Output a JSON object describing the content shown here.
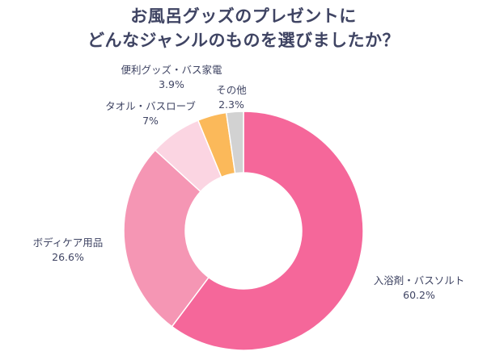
{
  "title_lines": [
    "お風呂グッズのプレゼントに",
    "どんなジャンルのものを選びましたか？"
  ],
  "chart_data": {
    "type": "pie",
    "donut": true,
    "slices": [
      {
        "label": "入浴剤・バスソルト",
        "value": 60.2,
        "value_text": "60.2%",
        "color": "#f5679a"
      },
      {
        "label": "ボディケア用品",
        "value": 26.6,
        "value_text": "26.6%",
        "color": "#f596b4"
      },
      {
        "label": "タオル・バスローブ",
        "value": 7,
        "value_text": "7%",
        "color": "#fbd5e2"
      },
      {
        "label": "便利グッズ・バス家電",
        "value": 3.9,
        "value_text": "3.9%",
        "color": "#fbb95a"
      },
      {
        "label": "その他",
        "value": 2.3,
        "value_text": "2.3%",
        "color": "#d2d2d2"
      }
    ]
  }
}
